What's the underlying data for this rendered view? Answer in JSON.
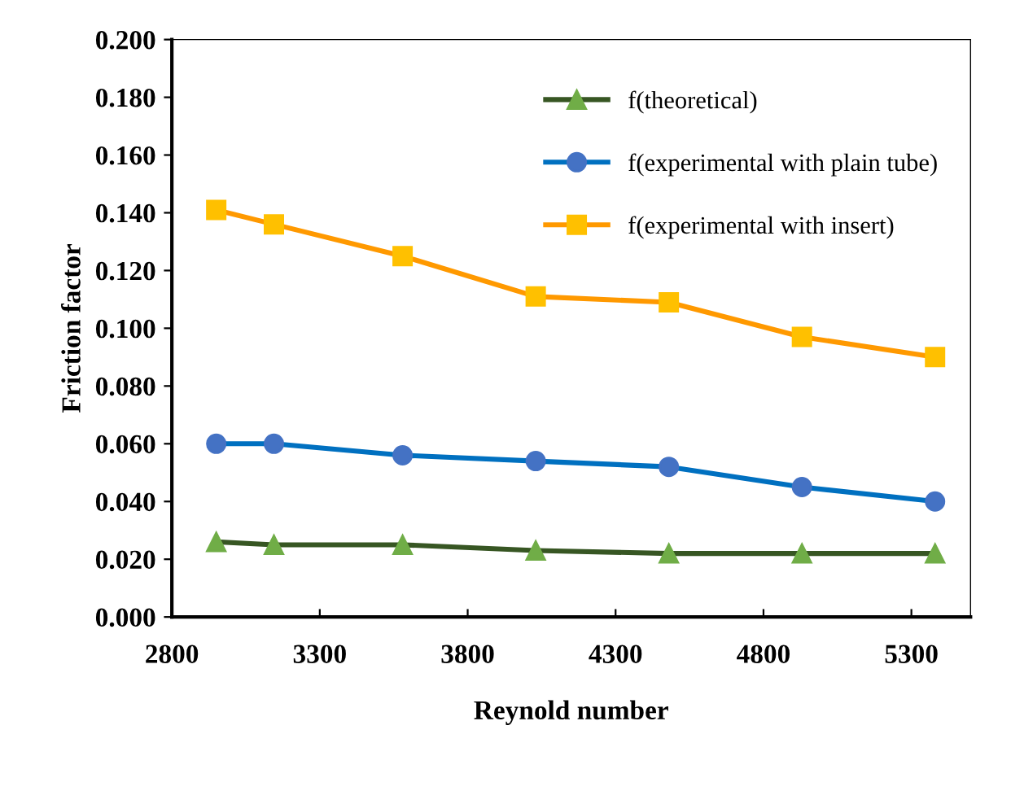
{
  "chart_data": {
    "type": "line",
    "xlabel": "Reynold number",
    "ylabel": "Friction factor",
    "x": [
      2950,
      3145,
      3580,
      4030,
      4480,
      4930,
      5380
    ],
    "series": [
      {
        "name": "f(theoretical)",
        "color": "#375623",
        "marker": "triangle",
        "values": [
          0.026,
          0.025,
          0.025,
          0.023,
          0.022,
          0.022,
          0.022
        ]
      },
      {
        "name": "f(experimental with plain tube)",
        "color": "#0070c0",
        "marker": "circle",
        "values": [
          0.06,
          0.06,
          0.056,
          0.054,
          0.052,
          0.045,
          0.04
        ]
      },
      {
        "name": "f(experimental with insert)",
        "color": "#ff9900",
        "marker": "square",
        "values": [
          0.141,
          0.136,
          0.125,
          0.111,
          0.109,
          0.097,
          0.09
        ]
      }
    ],
    "xlim": [
      2800,
      5500
    ],
    "xticks": [
      2800,
      3300,
      3800,
      4300,
      4800,
      5300
    ],
    "ylim": [
      0,
      0.2
    ],
    "yticks": [
      {
        "value": 0,
        "label": "0.000"
      },
      {
        "value": 0.02,
        "label": "0.020"
      },
      {
        "value": 0.04,
        "label": "0.040"
      },
      {
        "value": 0.06,
        "label": "0.060"
      },
      {
        "value": 0.08,
        "label": "0.080"
      },
      {
        "value": 0.1,
        "label": "0.100"
      },
      {
        "value": 0.12,
        "label": "0.120"
      },
      {
        "value": 0.14,
        "label": "0.140"
      },
      {
        "value": 0.16,
        "label": "0.160"
      },
      {
        "value": 0.18,
        "label": "0.180"
      },
      {
        "value": 0.2,
        "label": "0.200"
      }
    ],
    "grid": false,
    "legend": "top right",
    "line_style": "solid"
  }
}
